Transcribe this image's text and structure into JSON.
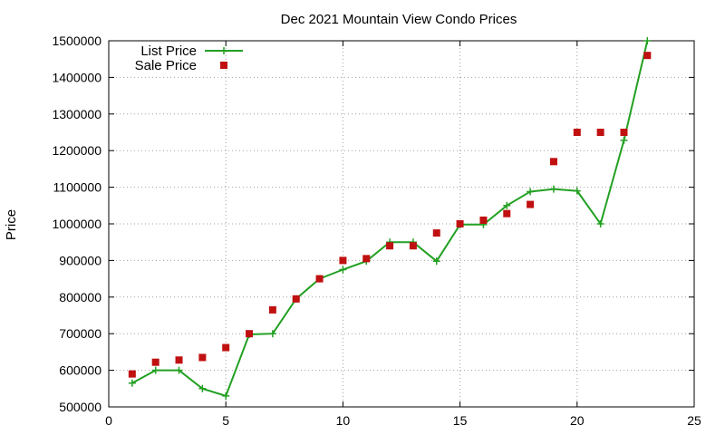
{
  "chart_data": {
    "type": "line",
    "title": "Dec 2021 Mountain View Condo Prices",
    "xlabel": "",
    "ylabel": "Price",
    "xlim": [
      0,
      25
    ],
    "ylim": [
      500000,
      1500000
    ],
    "xticks": [
      0,
      5,
      10,
      15,
      20,
      25
    ],
    "yticks": [
      500000,
      600000,
      700000,
      800000,
      900000,
      1000000,
      1100000,
      1200000,
      1300000,
      1400000,
      1500000
    ],
    "grid": true,
    "legend_position": "top-left",
    "series": [
      {
        "name": "List Price",
        "style": "line-with-plus-markers",
        "color": "#22a022",
        "x": [
          1,
          2,
          3,
          4,
          5,
          6,
          7,
          8,
          9,
          10,
          11,
          12,
          13,
          14,
          15,
          16,
          17,
          18,
          19,
          20,
          21,
          22,
          23
        ],
        "y": [
          565000,
          600000,
          600000,
          550000,
          530000,
          698000,
          700000,
          795000,
          850000,
          875000,
          898000,
          950000,
          950000,
          898000,
          998000,
          998000,
          1050000,
          1088000,
          1095000,
          1090000,
          1000000,
          1228000,
          1500000
        ]
      },
      {
        "name": "Sale Price",
        "style": "square-markers",
        "color": "#c01010",
        "x": [
          1,
          2,
          3,
          4,
          5,
          6,
          7,
          8,
          9,
          10,
          11,
          12,
          13,
          14,
          15,
          16,
          17,
          18,
          19,
          20,
          21,
          22,
          23
        ],
        "y": [
          590000,
          622000,
          628000,
          635000,
          662000,
          700000,
          765000,
          795000,
          850000,
          900000,
          905000,
          940000,
          940000,
          975000,
          1000000,
          1010000,
          1028000,
          1053000,
          1170000,
          1250000,
          1250000,
          1250000,
          1460000
        ]
      }
    ]
  }
}
